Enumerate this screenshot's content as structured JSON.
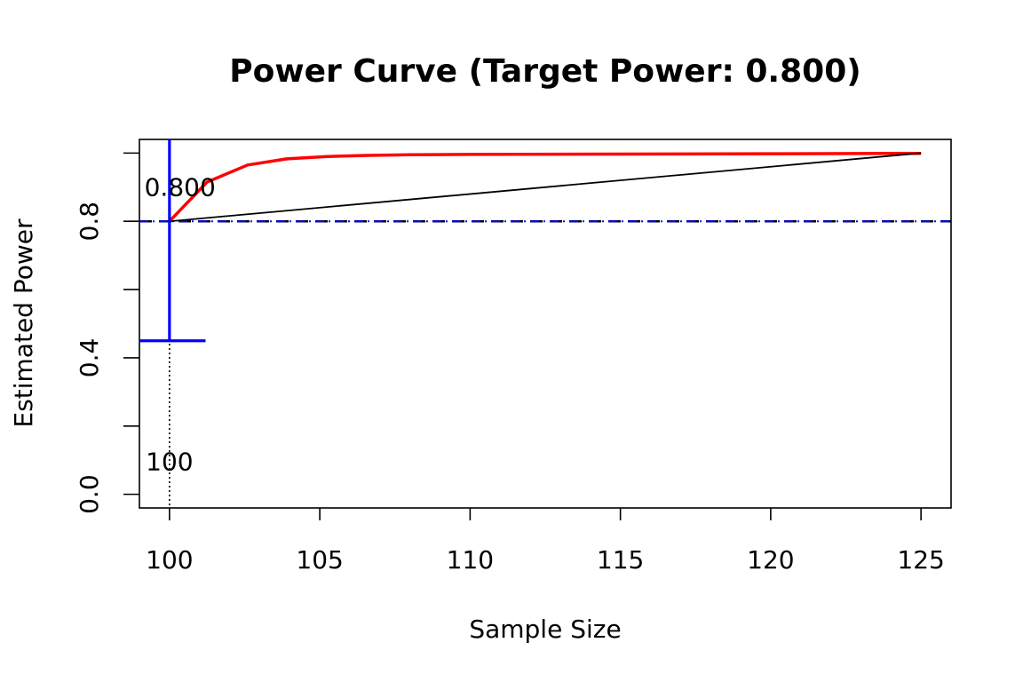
{
  "chart_data": {
    "type": "line",
    "title": "Power Curve (Target Power: 0.800)",
    "xlabel": "Sample Size",
    "ylabel": "Estimated Power",
    "xlim": [
      99,
      126
    ],
    "ylim": [
      -0.04,
      1.04
    ],
    "x_ticks": [
      100,
      105,
      110,
      115,
      120,
      125
    ],
    "x_tick_labels": [
      "100",
      "105",
      "110",
      "115",
      "120",
      "125"
    ],
    "y_ticks": [
      0.0,
      0.2,
      0.4,
      0.6,
      0.8,
      1.0
    ],
    "y_tick_labels": [
      "0.0",
      "",
      "0.4",
      "",
      "0.8",
      ""
    ],
    "grid": false,
    "series": [
      {
        "color": "#ff0000",
        "style": "solid",
        "x": [
          100,
          101.25,
          102.6,
          103.9,
          105.25,
          106.6,
          108,
          110,
          115,
          120,
          125
        ],
        "values": [
          0.8,
          0.915,
          0.965,
          0.983,
          0.99,
          0.993,
          0.995,
          0.996,
          0.997,
          0.998,
          0.999
        ]
      },
      {
        "color": "#000000",
        "style": "solid",
        "x": [
          100,
          125
        ],
        "values": [
          0.8,
          1.0
        ]
      }
    ],
    "reference_lines": {
      "target_power": {
        "value": 0.8,
        "color": "#0000ff",
        "style": "dash-dot"
      },
      "target_sample_size": {
        "value": 100,
        "color": "#000000",
        "style": "dotted"
      },
      "ci_vertical": {
        "x": 100,
        "y_from": 0.45,
        "y_to": 1.04,
        "color": "#0000ff"
      },
      "ci_horizontal": {
        "y": 0.45,
        "x_from": 99,
        "x_to": 101.2,
        "color": "#0000ff"
      }
    },
    "annotations": [
      {
        "text": "0.800",
        "x": 100.35,
        "y": 0.875
      },
      {
        "text": "100",
        "x": 100,
        "y": 0.07
      }
    ]
  }
}
